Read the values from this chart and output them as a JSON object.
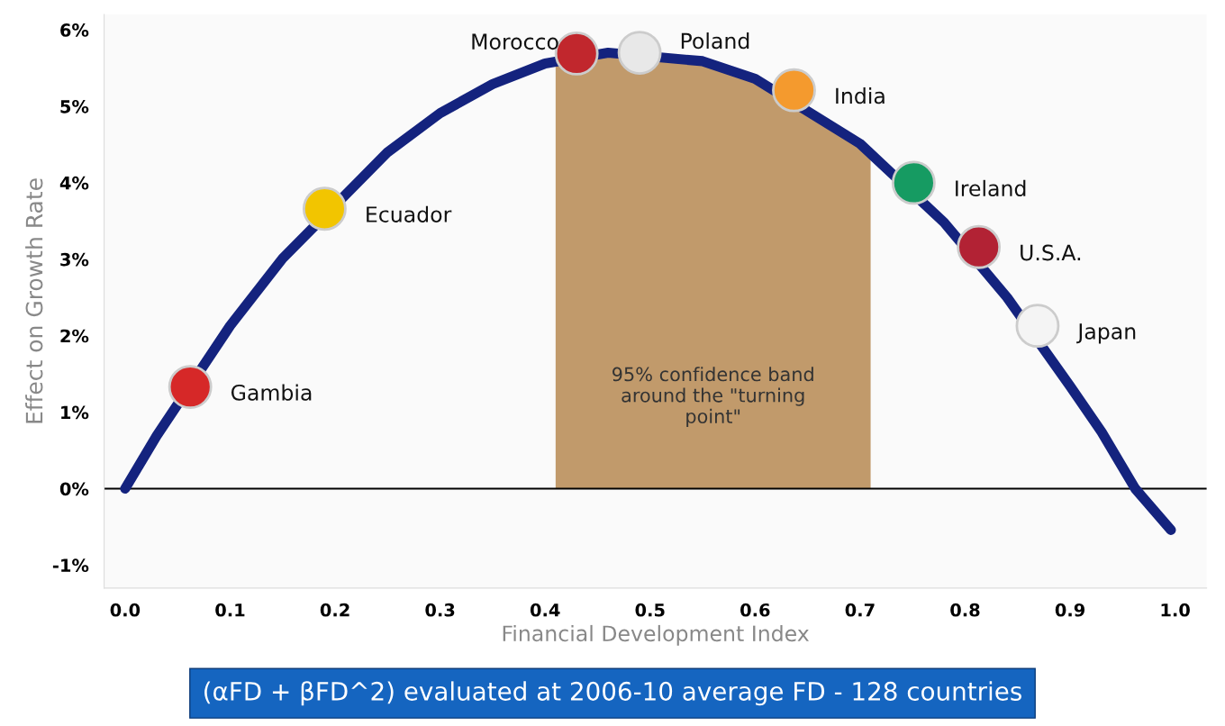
{
  "chart_data": {
    "type": "line",
    "xlabel": "Financial Development Index",
    "ylabel": "Effect on Growth Rate",
    "x": [
      0.0,
      0.03,
      0.1,
      0.15,
      0.25,
      0.3,
      0.35,
      0.4,
      0.46,
      0.55,
      0.6,
      0.7,
      0.78,
      0.84,
      0.9,
      0.93,
      0.962,
      0.996
    ],
    "series": [
      {
        "color": "#14237e",
        "values": [
          0.0,
          0.69,
          2.13,
          3.01,
          4.4,
          4.91,
          5.29,
          5.56,
          5.7,
          5.59,
          5.36,
          4.51,
          3.48,
          2.5,
          1.34,
          0.74,
          0.0,
          -0.54
        ]
      },
      {
        "type": "scatter",
        "x": [
          0.062,
          0.19,
          0.43,
          0.49,
          0.637,
          0.751,
          0.813,
          0.869
        ],
        "values": [
          1.33,
          3.66,
          5.69,
          5.7,
          5.21,
          4.0,
          3.16,
          2.13
        ],
        "colors": [
          "#d62828",
          "#f2c500",
          "#c1272d",
          "#e8e8e8",
          "#f49a2e",
          "#169b62",
          "#b22234",
          "#f4f4f4"
        ],
        "marker": "circle"
      }
    ],
    "annotations": [
      {
        "text": "Gambia",
        "x": 0.062,
        "y": 1.33
      },
      {
        "text": "Ecuador",
        "x": 0.19,
        "y": 3.66
      },
      {
        "text": "Morocco",
        "x": 0.43,
        "y": 5.69
      },
      {
        "text": "Poland",
        "x": 0.49,
        "y": 5.7
      },
      {
        "text": "India",
        "x": 0.637,
        "y": 5.21
      },
      {
        "text": "Ireland",
        "x": 0.751,
        "y": 4.0
      },
      {
        "text": "U.S.A.",
        "x": 0.813,
        "y": 3.16
      },
      {
        "text": "Japan",
        "x": 0.869,
        "y": 2.13
      },
      "(αFD + βFD^2) evaluated at 2006-10 average FD - 128 countries"
    ],
    "bands": [
      {
        "axis": "x",
        "from": 0.41,
        "to": 0.71,
        "label": "95% confidence band\naround the \"turning\npoint\"",
        "color": "#c19a6b"
      }
    ],
    "ref_lines": [
      {
        "axis": "y",
        "value": 0,
        "color": "#000000"
      }
    ],
    "xlim": [
      -0.02,
      1.03
    ],
    "ylim": [
      -1.3,
      6.2
    ],
    "xticks": [
      {
        "value": 0.0,
        "label": "0.0"
      },
      {
        "value": 0.1,
        "label": "0.1"
      },
      {
        "value": 0.2,
        "label": "0.2"
      },
      {
        "value": 0.3,
        "label": "0.3"
      },
      {
        "value": 0.4,
        "label": "0.4"
      },
      {
        "value": 0.5,
        "label": "0.5"
      },
      {
        "value": 0.6,
        "label": "0.6"
      },
      {
        "value": 0.7,
        "label": "0.7"
      },
      {
        "value": 0.8,
        "label": "0.8"
      },
      {
        "value": 0.9,
        "label": "0.9"
      },
      {
        "value": 1.0,
        "label": "1.0"
      }
    ],
    "yticks": [
      {
        "value": -1,
        "label": "-1%"
      },
      {
        "value": 0,
        "label": "0%"
      },
      {
        "value": 1,
        "label": "1%"
      },
      {
        "value": 2,
        "label": "2%"
      },
      {
        "value": 3,
        "label": "3%"
      },
      {
        "value": 4,
        "label": "4%"
      },
      {
        "value": 5,
        "label": "5%"
      },
      {
        "value": 6,
        "label": "6%"
      }
    ],
    "grid": false,
    "legend": false
  }
}
